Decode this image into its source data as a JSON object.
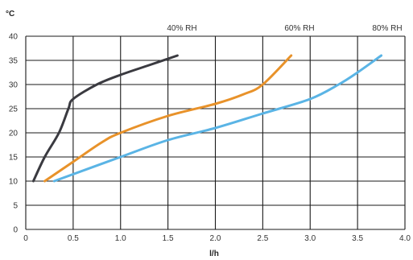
{
  "chart_data": {
    "type": "line",
    "ylabel": "°C",
    "xlabel": "l/h",
    "xlim": [
      0,
      4.0
    ],
    "ylim": [
      0,
      40
    ],
    "x_ticks": [
      "0",
      "0.5",
      "1.0",
      "1.5",
      "2.0",
      "2.5",
      "3.0",
      "3.5",
      "4.0"
    ],
    "y_ticks": [
      "0",
      "5",
      "10",
      "15",
      "20",
      "25",
      "30",
      "35",
      "40"
    ],
    "grid": true,
    "series": [
      {
        "name": "40% RH",
        "color": "#3a3a40",
        "points": [
          [
            0.08,
            10
          ],
          [
            0.2,
            15
          ],
          [
            0.35,
            20
          ],
          [
            0.45,
            25
          ],
          [
            0.5,
            27
          ],
          [
            0.75,
            30
          ],
          [
            1.0,
            32
          ],
          [
            1.3,
            34
          ],
          [
            1.6,
            36
          ]
        ]
      },
      {
        "name": "60% RH",
        "color": "#e8922a",
        "points": [
          [
            0.2,
            10
          ],
          [
            0.5,
            14
          ],
          [
            0.8,
            18
          ],
          [
            1.0,
            20
          ],
          [
            1.5,
            23.5
          ],
          [
            2.0,
            26
          ],
          [
            2.3,
            28
          ],
          [
            2.5,
            30
          ],
          [
            2.8,
            36
          ]
        ]
      },
      {
        "name": "80% RH",
        "color": "#5ab4e5",
        "points": [
          [
            0.3,
            10
          ],
          [
            1.0,
            15
          ],
          [
            1.5,
            18.5
          ],
          [
            2.0,
            21
          ],
          [
            2.5,
            24
          ],
          [
            3.0,
            27
          ],
          [
            3.3,
            30
          ],
          [
            3.5,
            32.5
          ],
          [
            3.75,
            36
          ]
        ]
      }
    ]
  }
}
